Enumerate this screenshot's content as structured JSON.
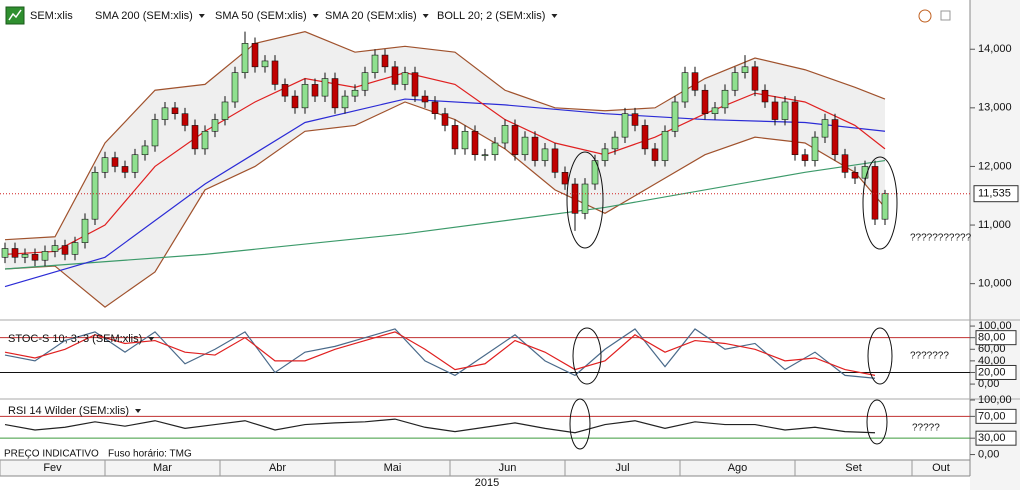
{
  "chart_data": [
    {
      "type": "candlestick",
      "symbol": "SEM:xlis",
      "open": [
        10450,
        10600,
        10450,
        10500,
        10400,
        10550,
        10650,
        10500,
        10700,
        11100,
        11900,
        12150,
        12000,
        11900,
        12200,
        12350,
        12800,
        13000,
        12900,
        12700,
        12300,
        12600,
        12800,
        13100,
        13600,
        14100,
        13700,
        13800,
        13400,
        13200,
        13000,
        13400,
        13200,
        13500,
        13000,
        13200,
        13300,
        13600,
        13900,
        13700,
        13400,
        13600,
        13200,
        13100,
        12900,
        12700,
        12300,
        12600,
        12200,
        12200,
        12400,
        12700,
        12200,
        12500,
        12100,
        12300,
        11900,
        11700,
        11200,
        11700,
        12100,
        12300,
        12500,
        12900,
        12700,
        12300,
        12100,
        12600,
        13100,
        13600,
        13300,
        12900,
        13000,
        13300,
        13600,
        13700,
        13300,
        13100,
        12800,
        13100,
        12200,
        12100,
        12500,
        12800,
        12200,
        11900,
        11800,
        12000,
        11100
      ],
      "high": [
        10700,
        10700,
        10600,
        10600,
        10650,
        10750,
        10750,
        10800,
        11200,
        12000,
        12250,
        12250,
        12100,
        12300,
        12450,
        12900,
        13100,
        13100,
        13000,
        12800,
        12700,
        12900,
        13200,
        13700,
        14300,
        14200,
        13900,
        13900,
        13500,
        13300,
        13500,
        13500,
        13600,
        13600,
        13300,
        13400,
        13700,
        14000,
        14000,
        13800,
        13700,
        13700,
        13300,
        13200,
        13000,
        12800,
        12700,
        12700,
        12300,
        12500,
        12800,
        12800,
        12600,
        12600,
        12400,
        12400,
        12000,
        11800,
        11800,
        12200,
        12400,
        12600,
        13000,
        13000,
        12800,
        12400,
        12700,
        13200,
        13700,
        13700,
        13400,
        13100,
        13400,
        13700,
        13900,
        13800,
        13400,
        13200,
        13200,
        13200,
        12300,
        12600,
        12900,
        12900,
        12300,
        12000,
        12100,
        12100,
        11600
      ],
      "low": [
        10350,
        10350,
        10350,
        10300,
        10300,
        10450,
        10400,
        10400,
        10600,
        11000,
        11800,
        11900,
        11800,
        11800,
        12100,
        12250,
        12700,
        12800,
        12600,
        12200,
        12200,
        12500,
        12700,
        13000,
        13500,
        13600,
        13600,
        13300,
        13100,
        12900,
        12900,
        13100,
        13100,
        12900,
        12900,
        13100,
        13200,
        13500,
        13600,
        13300,
        13300,
        13100,
        13000,
        12800,
        12600,
        12200,
        12200,
        12100,
        12100,
        12100,
        12300,
        12100,
        12100,
        12000,
        12000,
        11800,
        11600,
        10900,
        11100,
        11600,
        12000,
        12200,
        12400,
        12600,
        12200,
        12000,
        12000,
        12500,
        13000,
        13200,
        12800,
        12800,
        12900,
        13200,
        13500,
        13200,
        13000,
        12700,
        12700,
        12100,
        12000,
        12000,
        12400,
        12100,
        11800,
        11700,
        11700,
        11000,
        11000
      ],
      "close": [
        10600,
        10450,
        10500,
        10400,
        10550,
        10650,
        10500,
        10700,
        11100,
        11900,
        12150,
        12000,
        11900,
        12200,
        12350,
        12800,
        13000,
        12900,
        12700,
        12300,
        12600,
        12800,
        13100,
        13600,
        14100,
        13700,
        13800,
        13400,
        13200,
        13000,
        13400,
        13200,
        13500,
        13000,
        13200,
        13300,
        13600,
        13900,
        13700,
        13400,
        13600,
        13200,
        13100,
        12900,
        12700,
        12300,
        12600,
        12200,
        12200,
        12400,
        12700,
        12200,
        12500,
        12100,
        12300,
        11900,
        11700,
        11200,
        11700,
        12100,
        12300,
        12500,
        12900,
        12700,
        12300,
        12100,
        12600,
        13100,
        13600,
        13300,
        12900,
        13000,
        13300,
        13600,
        13700,
        13300,
        13100,
        12800,
        13100,
        12200,
        12100,
        12500,
        12800,
        12200,
        11900,
        11800,
        12000,
        11100,
        11535
      ],
      "up_color": "#8fe08f",
      "down_color": "#c00000",
      "series": [
        {
          "name": "SMA 200 (SEM:xlis)",
          "color": "#3c9a6a",
          "x": [
            0,
            20,
            40,
            60,
            80,
            88
          ],
          "values": [
            10250,
            10500,
            10850,
            11300,
            11900,
            12100
          ]
        },
        {
          "name": "SMA 50 (SEM:xlis)",
          "color": "#2b2bd6",
          "x": [
            0,
            10,
            20,
            30,
            40,
            50,
            60,
            70,
            80,
            88
          ],
          "values": [
            9950,
            10450,
            11700,
            12750,
            13150,
            13050,
            12900,
            12800,
            12750,
            12600
          ]
        },
        {
          "name": "SMA 20 (SEM:xlis)",
          "color": "#e02020",
          "x": [
            0,
            5,
            10,
            15,
            20,
            25,
            30,
            35,
            40,
            45,
            50,
            55,
            60,
            65,
            70,
            75,
            80,
            85,
            88
          ],
          "values": [
            10500,
            10550,
            11000,
            12000,
            12600,
            13100,
            13500,
            13350,
            13600,
            13400,
            12800,
            12400,
            12200,
            12500,
            12900,
            13250,
            13100,
            12700,
            12300
          ]
        },
        {
          "name": "BOLL 20; 2 (SEM:xlis)",
          "color": "#a0522d",
          "fill": "#efefef",
          "x": [
            0,
            5,
            10,
            15,
            20,
            25,
            30,
            35,
            40,
            45,
            50,
            55,
            60,
            65,
            70,
            75,
            80,
            85,
            88
          ],
          "upper": [
            10750,
            10800,
            12400,
            13300,
            13400,
            14100,
            14300,
            13950,
            14050,
            13950,
            13300,
            13000,
            12950,
            13000,
            13500,
            13850,
            13650,
            13350,
            13150
          ],
          "lower": [
            10250,
            10300,
            9600,
            10200,
            11600,
            12000,
            12600,
            12700,
            13100,
            12800,
            12300,
            11600,
            11200,
            11700,
            12200,
            12500,
            12400,
            11900,
            11300
          ]
        }
      ],
      "xlim": [
        -0.5,
        96.5
      ],
      "ylim": [
        9414,
        14840
      ],
      "yticks": [
        {
          "value": 10000,
          "label": "10,000"
        },
        {
          "value": 11000,
          "label": "11,000"
        },
        {
          "value": 12000,
          "label": "12,000"
        },
        {
          "value": 13000,
          "label": "13,000"
        },
        {
          "value": 14000,
          "label": "14,000"
        }
      ],
      "last_price": {
        "value": 11535,
        "label": "11,535",
        "color": "#d02020"
      },
      "xticks": [
        {
          "value": -0.5,
          "label": "Fev"
        },
        {
          "value": 10,
          "label": "Mar"
        },
        {
          "value": 21.5,
          "label": "Abr"
        },
        {
          "value": 33,
          "label": "Mai"
        },
        {
          "value": 44.5,
          "label": "Jun"
        },
        {
          "value": 56,
          "label": "Jul"
        },
        {
          "value": 67.5,
          "label": "Ago"
        },
        {
          "value": 79,
          "label": "Set"
        },
        {
          "value": 90.7,
          "label": "Out"
        }
      ],
      "x_label": "2015",
      "annotation": "???????????"
    },
    {
      "type": "line",
      "title": "STOC-S 10; 3; 3 (SEM:xlis)",
      "series": [
        {
          "color": "#4a6a8a",
          "x": [
            0,
            3,
            6,
            9,
            12,
            15,
            18,
            21,
            24,
            27,
            30,
            33,
            36,
            39,
            42,
            45,
            48,
            51,
            54,
            57,
            60,
            63,
            66,
            69,
            72,
            75,
            78,
            81,
            84,
            87
          ],
          "values": [
            50,
            40,
            75,
            90,
            55,
            90,
            35,
            60,
            90,
            20,
            55,
            65,
            80,
            95,
            40,
            15,
            50,
            85,
            40,
            15,
            60,
            95,
            30,
            95,
            60,
            70,
            25,
            55,
            15,
            10
          ]
        },
        {
          "color": "#e02020",
          "x": [
            0,
            3,
            6,
            9,
            12,
            15,
            18,
            21,
            24,
            27,
            30,
            33,
            36,
            39,
            42,
            45,
            48,
            51,
            54,
            57,
            60,
            63,
            66,
            69,
            72,
            75,
            78,
            81,
            84,
            87
          ],
          "values": [
            55,
            45,
            60,
            85,
            70,
            75,
            55,
            50,
            80,
            40,
            40,
            60,
            75,
            90,
            60,
            25,
            35,
            75,
            55,
            25,
            40,
            85,
            55,
            75,
            70,
            60,
            40,
            45,
            25,
            15
          ]
        }
      ],
      "ylim": [
        -24,
        107
      ],
      "yticks": [
        {
          "value": 0,
          "label": "0,00"
        },
        {
          "value": 20,
          "label": "20,00"
        },
        {
          "value": 40,
          "label": "40,00"
        },
        {
          "value": 60,
          "label": "60,00"
        },
        {
          "value": 80,
          "label": "80,00"
        },
        {
          "value": 100,
          "label": "100,00"
        }
      ],
      "levels": [
        {
          "value": 80,
          "color": "#c03030"
        },
        {
          "value": 20,
          "color": "#111111"
        }
      ],
      "annotation": "???????"
    },
    {
      "type": "line",
      "title": "RSI 14 Wilder (SEM:xlis)",
      "series": [
        {
          "color": "#222222",
          "x": [
            0,
            3,
            6,
            9,
            12,
            15,
            18,
            21,
            24,
            27,
            30,
            33,
            36,
            39,
            42,
            45,
            48,
            51,
            54,
            57,
            60,
            63,
            66,
            69,
            72,
            75,
            78,
            81,
            84,
            87
          ],
          "values": [
            55,
            45,
            50,
            60,
            52,
            62,
            48,
            55,
            62,
            45,
            55,
            58,
            60,
            65,
            50,
            42,
            50,
            58,
            48,
            40,
            55,
            62,
            48,
            60,
            55,
            55,
            45,
            50,
            42,
            40
          ]
        }
      ],
      "ylim": [
        -10,
        100
      ],
      "yticks": [
        {
          "value": 0,
          "label": "0,00"
        },
        {
          "value": 30,
          "label": "30,00"
        },
        {
          "value": 70,
          "label": "70,00"
        },
        {
          "value": 100,
          "label": "100,00"
        }
      ],
      "levels": [
        {
          "value": 70,
          "color": "#c03030"
        },
        {
          "value": 30,
          "color": "#3c9a3c"
        }
      ],
      "annotation": "?????",
      "notes": [
        "PREÇO INDICATIVO",
        "Fuso horário: TMG"
      ]
    }
  ]
}
